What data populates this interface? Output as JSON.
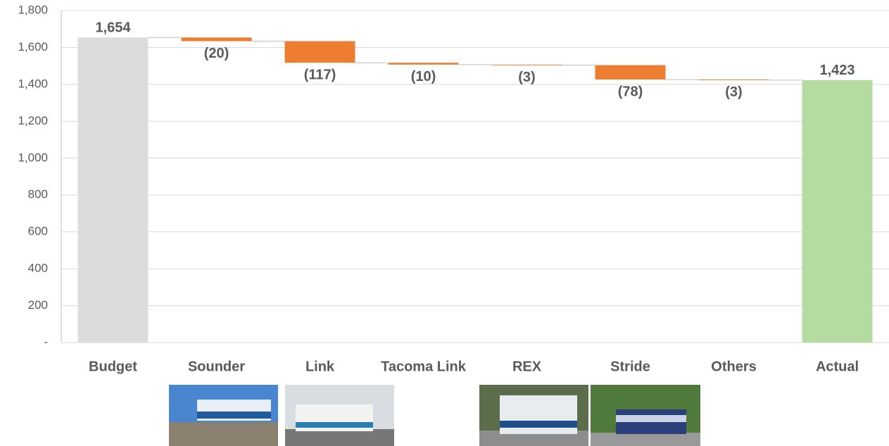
{
  "chart_data": {
    "type": "waterfall",
    "categories": [
      "Budget",
      "Sounder",
      "Link",
      "Tacoma Link",
      "REX",
      "Stride",
      "Others",
      "Actual"
    ],
    "values": [
      1654,
      -20,
      -117,
      -10,
      -3,
      -78,
      -3,
      1423
    ],
    "value_labels": [
      "1,654",
      "(20)",
      "(117)",
      "(10)",
      "(3)",
      "(78)",
      "(3)",
      "1,423"
    ],
    "colors": [
      "#dcdcdc",
      "#ed7d31",
      "#ed7d31",
      "#ed7d31",
      "#ed7d31",
      "#ed7d31",
      "#ed7d31",
      "#b5dca0"
    ],
    "ylim": [
      0,
      1800
    ],
    "yticks": [
      {
        "value": 0,
        "label": "-"
      },
      200,
      400,
      600,
      800,
      {
        "value": 1000,
        "label": "1,000"
      },
      {
        "value": 1200,
        "label": "1,200"
      },
      {
        "value": 1400,
        "label": "1,400"
      },
      {
        "value": 1600,
        "label": "1,600"
      },
      {
        "value": 1800,
        "label": "1,800"
      }
    ],
    "grid": true
  }
}
